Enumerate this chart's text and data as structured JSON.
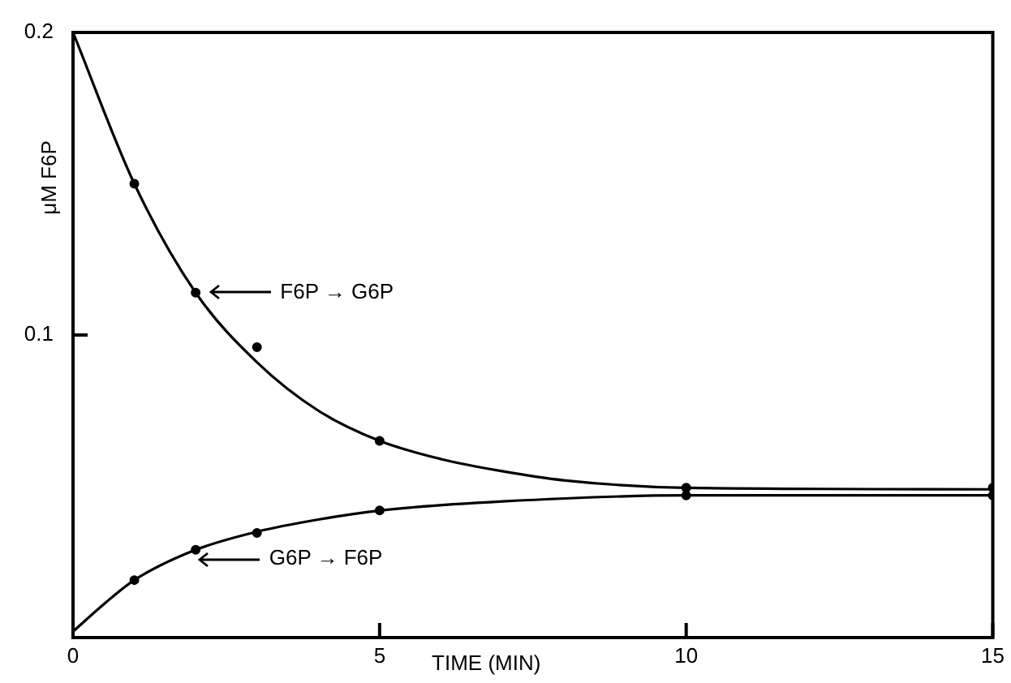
{
  "chart_data": {
    "type": "scatter",
    "xlabel": "TIME (MIN)",
    "ylabel": "μM F6P",
    "xlim": [
      0,
      15
    ],
    "xticks": [
      0,
      5,
      10,
      15
    ],
    "ylim": [
      0,
      0.2
    ],
    "yticks": [
      {
        "value": 0,
        "label": null
      },
      0.1,
      0.2
    ],
    "grid": false,
    "legend": false,
    "series": [
      {
        "color": "#000000",
        "marker": "circle",
        "x": [
          1,
          2,
          3,
          5,
          10,
          15
        ],
        "values": [
          0.15,
          0.114,
          0.096,
          0.065,
          0.0495,
          0.0495
        ]
      },
      {
        "color": "#000000",
        "marker": "circle",
        "x": [
          1,
          2,
          3,
          5,
          10,
          15
        ],
        "values": [
          0.019,
          0.029,
          0.0346,
          0.042,
          0.047,
          0.047
        ]
      },
      {
        "type": "line",
        "color": "#000000",
        "marker": "none",
        "x": [
          0,
          1,
          2,
          3,
          4,
          5,
          6,
          7,
          8,
          10,
          15
        ],
        "values": [
          0.2,
          0.15,
          0.114,
          0.091,
          0.075,
          0.065,
          0.059,
          0.055,
          0.052,
          0.0495,
          0.049
        ]
      },
      {
        "type": "line",
        "color": "#000000",
        "marker": "none",
        "x": [
          0,
          0.5,
          1,
          2,
          3,
          4,
          5,
          7,
          10,
          15
        ],
        "values": [
          0.002,
          0.011,
          0.019,
          0.029,
          0.035,
          0.039,
          0.042,
          0.045,
          0.047,
          0.047
        ]
      }
    ],
    "annotations": [
      "F6P → G6P",
      "G6P → F6P"
    ]
  }
}
